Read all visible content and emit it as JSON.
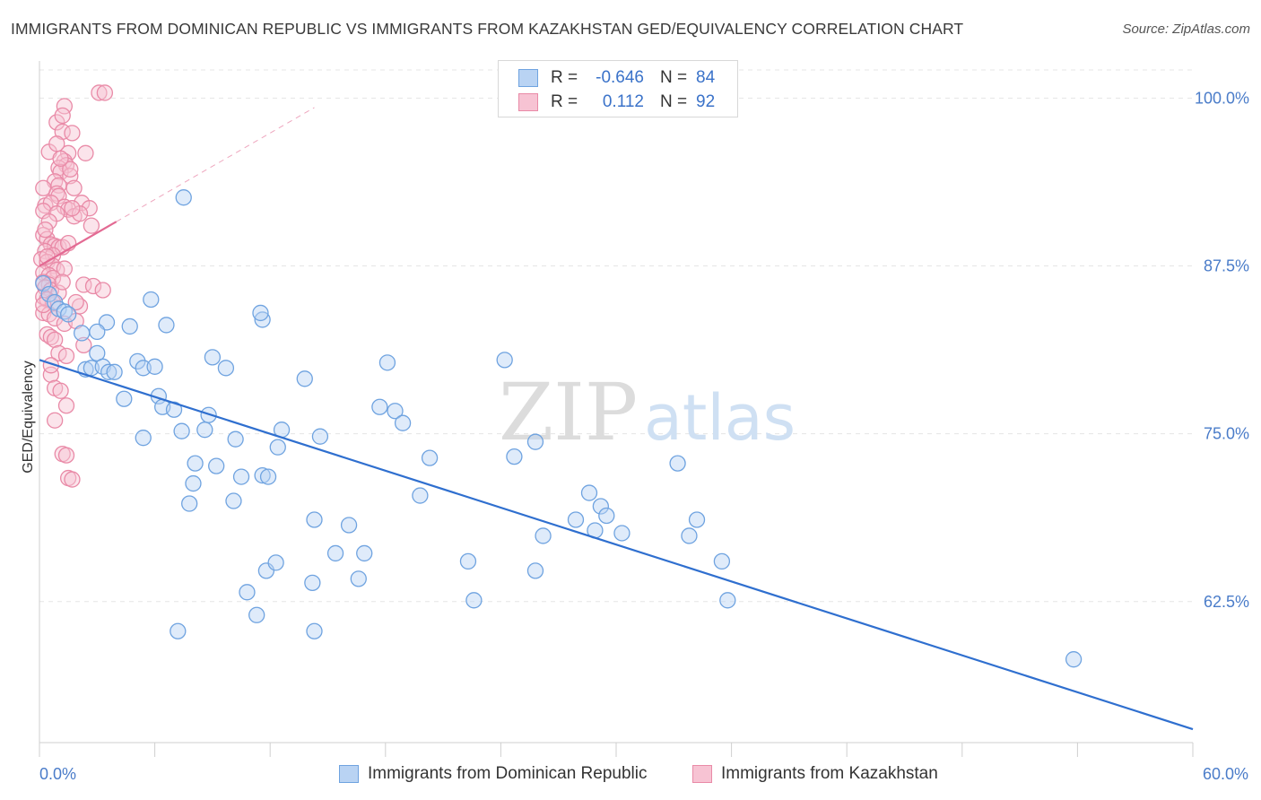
{
  "header": {
    "title": "IMMIGRANTS FROM DOMINICAN REPUBLIC VS IMMIGRANTS FROM KAZAKHSTAN GED/EQUIVALENCY CORRELATION CHART",
    "source": "Source: ZipAtlas.com"
  },
  "watermark": {
    "zip": "ZIP",
    "atlas": "atlas"
  },
  "legend": {
    "rows": [
      {
        "r_label": "R =",
        "r_value": "-0.646",
        "n_label": "N =",
        "n_value": "84"
      },
      {
        "r_label": "R =",
        "r_value": "0.112",
        "n_label": "N =",
        "n_value": "92"
      }
    ]
  },
  "colors": {
    "blue": "#6fa3e0",
    "blue_fill": "#b9d3f3",
    "blue_line": "#2f6fcf",
    "pink": "#e98aa7",
    "pink_fill": "#f7c3d3",
    "pink_line": "#e36a93",
    "axis_text": "#4a7cc9",
    "grid": "#e5e5e5"
  },
  "chart_data": {
    "type": "scatter",
    "title": "IMMIGRANTS FROM DOMINICAN REPUBLIC VS IMMIGRANTS FROM KAZAKHSTAN GED/EQUIVALENCY CORRELATION CHART",
    "xlabel": "",
    "ylabel": "GED/Equivalency",
    "xlim": [
      0,
      60
    ],
    "ylim": [
      52,
      102.5
    ],
    "x_ticks": [
      "0.0%",
      "60.0%"
    ],
    "y_ticks": [
      {
        "value": 100,
        "label": "100.0%"
      },
      {
        "value": 87.5,
        "label": "87.5%"
      },
      {
        "value": 75,
        "label": "75.0%"
      },
      {
        "value": 62.5,
        "label": "62.5%"
      }
    ],
    "grid": "horizontal dashed",
    "legend_position": "top-center",
    "series": [
      {
        "name": "Immigrants from Dominican Republic",
        "color": "blue",
        "r": -0.646,
        "n": 84,
        "trend": {
          "x": [
            0,
            60
          ],
          "y": [
            80.5,
            53
          ]
        },
        "points": [
          [
            0.2,
            86.2
          ],
          [
            0.5,
            85.4
          ],
          [
            0.8,
            84.8
          ],
          [
            1.0,
            84.3
          ],
          [
            1.3,
            84.1
          ],
          [
            1.5,
            83.9
          ],
          [
            2.2,
            82.5
          ],
          [
            3.5,
            83.3
          ],
          [
            4.7,
            83.0
          ],
          [
            5.8,
            85.0
          ],
          [
            6.6,
            83.1
          ],
          [
            2.4,
            79.8
          ],
          [
            2.7,
            79.9
          ],
          [
            3.0,
            81.0
          ],
          [
            3.3,
            80.0
          ],
          [
            3.6,
            79.6
          ],
          [
            3.9,
            79.6
          ],
          [
            4.4,
            77.6
          ],
          [
            5.1,
            80.4
          ],
          [
            5.4,
            79.9
          ],
          [
            6.0,
            80.0
          ],
          [
            6.2,
            77.8
          ],
          [
            6.4,
            77.0
          ],
          [
            7.0,
            76.8
          ],
          [
            5.4,
            74.7
          ],
          [
            7.4,
            75.2
          ],
          [
            7.5,
            92.6
          ],
          [
            8.6,
            75.3
          ],
          [
            8.8,
            76.4
          ],
          [
            9.0,
            80.7
          ],
          [
            9.7,
            79.9
          ],
          [
            10.2,
            74.6
          ],
          [
            10.1,
            70.0
          ],
          [
            7.8,
            69.8
          ],
          [
            8.0,
            71.3
          ],
          [
            8.1,
            72.8
          ],
          [
            9.2,
            72.6
          ],
          [
            10.5,
            71.8
          ],
          [
            11.6,
            71.9
          ],
          [
            11.9,
            71.8
          ],
          [
            11.6,
            83.5
          ],
          [
            11.5,
            84.0
          ],
          [
            12.4,
            74.0
          ],
          [
            12.6,
            75.3
          ],
          [
            13.8,
            79.1
          ],
          [
            14.6,
            74.8
          ],
          [
            14.3,
            68.6
          ],
          [
            11.8,
            64.8
          ],
          [
            12.3,
            65.4
          ],
          [
            10.8,
            63.2
          ],
          [
            11.3,
            61.5
          ],
          [
            14.2,
            63.9
          ],
          [
            15.4,
            66.1
          ],
          [
            16.1,
            68.2
          ],
          [
            16.6,
            64.2
          ],
          [
            16.9,
            66.1
          ],
          [
            18.1,
            80.3
          ],
          [
            17.7,
            77.0
          ],
          [
            18.5,
            76.7
          ],
          [
            18.9,
            75.8
          ],
          [
            20.3,
            73.2
          ],
          [
            19.8,
            70.4
          ],
          [
            22.6,
            62.6
          ],
          [
            22.3,
            65.5
          ],
          [
            24.2,
            80.5
          ],
          [
            24.7,
            73.3
          ],
          [
            25.8,
            74.4
          ],
          [
            26.2,
            67.4
          ],
          [
            25.8,
            64.8
          ],
          [
            27.9,
            68.6
          ],
          [
            28.6,
            70.6
          ],
          [
            29.2,
            69.6
          ],
          [
            29.5,
            68.9
          ],
          [
            28.9,
            67.8
          ],
          [
            30.3,
            67.6
          ],
          [
            33.2,
            72.8
          ],
          [
            33.8,
            67.4
          ],
          [
            34.2,
            68.6
          ],
          [
            35.5,
            65.5
          ],
          [
            35.8,
            62.6
          ],
          [
            53.8,
            58.2
          ],
          [
            7.2,
            60.3
          ],
          [
            14.3,
            60.3
          ],
          [
            3.0,
            82.6
          ]
        ]
      },
      {
        "name": "Immigrants from Kazakhstan",
        "color": "pink",
        "r": 0.112,
        "n": 92,
        "trend": {
          "x": [
            0,
            4
          ],
          "y": [
            87.5,
            90.8
          ]
        },
        "points": [
          [
            3.1,
            100.4
          ],
          [
            3.4,
            100.4
          ],
          [
            1.3,
            99.4
          ],
          [
            0.9,
            98.2
          ],
          [
            1.2,
            98.7
          ],
          [
            1.2,
            97.5
          ],
          [
            1.7,
            97.4
          ],
          [
            1.5,
            95.9
          ],
          [
            1.3,
            95.3
          ],
          [
            1.4,
            95.0
          ],
          [
            1.0,
            94.8
          ],
          [
            1.1,
            94.5
          ],
          [
            1.6,
            94.2
          ],
          [
            0.8,
            93.8
          ],
          [
            1.0,
            93.5
          ],
          [
            0.2,
            93.3
          ],
          [
            0.9,
            92.9
          ],
          [
            1.0,
            92.7
          ],
          [
            2.2,
            92.2
          ],
          [
            0.3,
            92.0
          ],
          [
            0.6,
            92.2
          ],
          [
            1.3,
            91.9
          ],
          [
            1.5,
            91.7
          ],
          [
            2.6,
            91.8
          ],
          [
            0.2,
            91.6
          ],
          [
            0.9,
            91.4
          ],
          [
            1.8,
            91.2
          ],
          [
            0.5,
            90.8
          ],
          [
            0.2,
            89.8
          ],
          [
            0.4,
            89.5
          ],
          [
            0.6,
            89.1
          ],
          [
            0.8,
            89.0
          ],
          [
            1.0,
            88.9
          ],
          [
            1.2,
            88.9
          ],
          [
            0.3,
            88.6
          ],
          [
            0.7,
            88.3
          ],
          [
            0.1,
            88.0
          ],
          [
            0.4,
            87.8
          ],
          [
            0.7,
            87.5
          ],
          [
            0.9,
            87.2
          ],
          [
            1.3,
            87.3
          ],
          [
            0.2,
            87.0
          ],
          [
            0.5,
            86.8
          ],
          [
            0.7,
            86.6
          ],
          [
            0.2,
            86.3
          ],
          [
            0.5,
            86.1
          ],
          [
            0.3,
            85.9
          ],
          [
            0.6,
            85.7
          ],
          [
            1.0,
            85.5
          ],
          [
            2.3,
            86.1
          ],
          [
            2.8,
            86.0
          ],
          [
            3.3,
            85.7
          ],
          [
            0.2,
            85.2
          ],
          [
            0.4,
            85.0
          ],
          [
            0.7,
            84.8
          ],
          [
            2.1,
            84.5
          ],
          [
            0.2,
            84.0
          ],
          [
            0.5,
            83.9
          ],
          [
            0.8,
            83.6
          ],
          [
            1.3,
            83.2
          ],
          [
            1.9,
            83.4
          ],
          [
            0.4,
            82.4
          ],
          [
            0.6,
            82.2
          ],
          [
            0.8,
            82.0
          ],
          [
            2.3,
            81.6
          ],
          [
            1.0,
            81.0
          ],
          [
            1.4,
            80.8
          ],
          [
            0.6,
            79.4
          ],
          [
            0.8,
            78.4
          ],
          [
            1.1,
            78.2
          ],
          [
            1.4,
            77.1
          ],
          [
            0.8,
            76.0
          ],
          [
            1.2,
            73.5
          ],
          [
            1.4,
            73.4
          ],
          [
            1.5,
            71.7
          ],
          [
            1.7,
            71.6
          ],
          [
            0.5,
            96.0
          ],
          [
            2.1,
            91.4
          ],
          [
            2.4,
            95.9
          ],
          [
            1.8,
            93.3
          ],
          [
            0.3,
            90.2
          ],
          [
            1.6,
            94.7
          ],
          [
            0.9,
            96.6
          ],
          [
            1.1,
            95.5
          ],
          [
            0.2,
            84.6
          ],
          [
            1.5,
            89.2
          ],
          [
            1.9,
            84.8
          ],
          [
            0.6,
            80.1
          ],
          [
            2.7,
            90.5
          ],
          [
            1.2,
            86.3
          ],
          [
            0.4,
            88.2
          ],
          [
            1.7,
            91.8
          ]
        ]
      }
    ]
  },
  "bottom_legend": [
    {
      "label": "Immigrants from Dominican Republic"
    },
    {
      "label": "Immigrants from Kazakhstan"
    }
  ]
}
